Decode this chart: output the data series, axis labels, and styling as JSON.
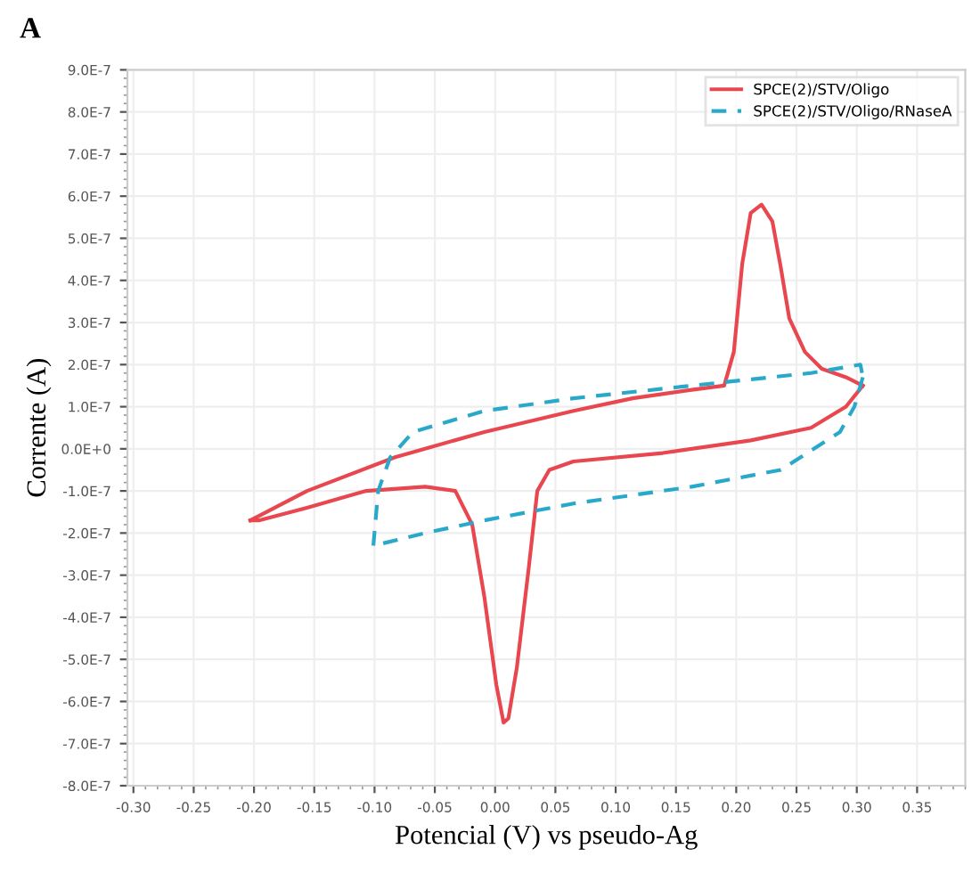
{
  "chart_data": {
    "type": "line",
    "title": "A",
    "xlabel": "Potencial (V) vs pseudo-Ag",
    "ylabel": "Corrente (A)",
    "xlim": [
      -0.305,
      0.39
    ],
    "ylim": [
      -8e-07,
      9e-07
    ],
    "xticks": [
      {
        "value": -0.3,
        "label": "-0.30"
      },
      {
        "value": -0.25,
        "label": "-0.25"
      },
      {
        "value": -0.2,
        "label": "-0.20"
      },
      {
        "value": -0.15,
        "label": "-0.15"
      },
      {
        "value": -0.1,
        "label": "-0.10"
      },
      {
        "value": -0.05,
        "label": "-0.05"
      },
      {
        "value": 0.0,
        "label": "0.00"
      },
      {
        "value": 0.05,
        "label": "0.05"
      },
      {
        "value": 0.1,
        "label": "0.10"
      },
      {
        "value": 0.15,
        "label": "0.15"
      },
      {
        "value": 0.2,
        "label": "0.20"
      },
      {
        "value": 0.25,
        "label": "0.25"
      },
      {
        "value": 0.3,
        "label": "0.30"
      },
      {
        "value": 0.35,
        "label": "0.35"
      }
    ],
    "yticks": [
      {
        "value": 9e-07,
        "label": "9.0E-7"
      },
      {
        "value": 8e-07,
        "label": "8.0E-7"
      },
      {
        "value": 7e-07,
        "label": "7.0E-7"
      },
      {
        "value": 6e-07,
        "label": "6.0E-7"
      },
      {
        "value": 5e-07,
        "label": "5.0E-7"
      },
      {
        "value": 4e-07,
        "label": "4.0E-7"
      },
      {
        "value": 3e-07,
        "label": "3.0E-7"
      },
      {
        "value": 2e-07,
        "label": "2.0E-7"
      },
      {
        "value": 1e-07,
        "label": "1.0E-7"
      },
      {
        "value": 0,
        "label": "0.0E+0"
      },
      {
        "value": -1e-07,
        "label": "-1.0E-7"
      },
      {
        "value": -2e-07,
        "label": "-2.0E-7"
      },
      {
        "value": -3e-07,
        "label": "-3.0E-7"
      },
      {
        "value": -4e-07,
        "label": "-4.0E-7"
      },
      {
        "value": -5e-07,
        "label": "-5.0E-7"
      },
      {
        "value": -6e-07,
        "label": "-6.0E-7"
      },
      {
        "value": -7e-07,
        "label": "-7.0E-7"
      },
      {
        "value": -8e-07,
        "label": "-8.0E-7"
      }
    ],
    "grid": true,
    "legend": "top right",
    "marker": "none",
    "series": [
      {
        "name": "SPCE(2)/STV/Oligo",
        "color": "#e8474f",
        "line_style": "solid",
        "x": [
          -0.203,
          -0.156,
          -0.083,
          -0.009,
          0.065,
          0.114,
          0.163,
          0.19,
          0.198,
          0.205,
          0.212,
          0.221,
          0.23,
          0.237,
          0.244,
          0.257,
          0.271,
          0.291,
          0.305
        ],
        "values": [
          -1.7e-07,
          -1e-07,
          -2e-08,
          4e-08,
          9e-08,
          1.2e-07,
          1.4e-07,
          1.5e-07,
          2.3e-07,
          4.4e-07,
          5.6e-07,
          5.8e-07,
          5.4e-07,
          4.3e-07,
          3.1e-07,
          2.3e-07,
          1.9e-07,
          1.7e-07,
          1.5e-07
        ]
      },
      {
        "color": "#e8474f",
        "line_style": "solid",
        "x": [
          0.305,
          0.291,
          0.262,
          0.212,
          0.139,
          0.065,
          0.045,
          0.035,
          0.028,
          0.018,
          0.011,
          0.007,
          0.001,
          -0.009,
          -0.019,
          -0.033,
          -0.058,
          -0.107,
          -0.156,
          -0.196,
          -0.203
        ],
        "values": [
          1.5e-07,
          1e-07,
          5e-08,
          2e-08,
          -1e-08,
          -3e-08,
          -5e-08,
          -1e-07,
          -2.8e-07,
          -5.2e-07,
          -6.4e-07,
          -6.5e-07,
          -5.6e-07,
          -3.5e-07,
          -1.8e-07,
          -1e-07,
          -9e-08,
          -1e-07,
          -1.4e-07,
          -1.7e-07,
          -1.7e-07
        ]
      },
      {
        "name": "SPCE(2)/STV/Oligo/RNaseA",
        "color": "#29a9c9",
        "line_style": "dashed",
        "x": [
          -0.101,
          -0.097,
          -0.087,
          -0.068,
          -0.009,
          0.065,
          0.163,
          0.262,
          0.303,
          0.305
        ],
        "values": [
          -2.3e-07,
          -1e-07,
          -2e-08,
          4e-08,
          9e-08,
          1.2e-07,
          1.5e-07,
          1.8e-07,
          2e-07,
          1.7e-07
        ]
      },
      {
        "color": "#29a9c9",
        "line_style": "dashed",
        "x": [
          0.305,
          0.298,
          0.286,
          0.237,
          0.163,
          0.065,
          -0.009,
          -0.058,
          -0.101
        ],
        "values": [
          1.7e-07,
          1e-07,
          4e-08,
          -5e-08,
          -9e-08,
          -1.3e-07,
          -1.7e-07,
          -2e-07,
          -2.3e-07
        ]
      }
    ]
  }
}
